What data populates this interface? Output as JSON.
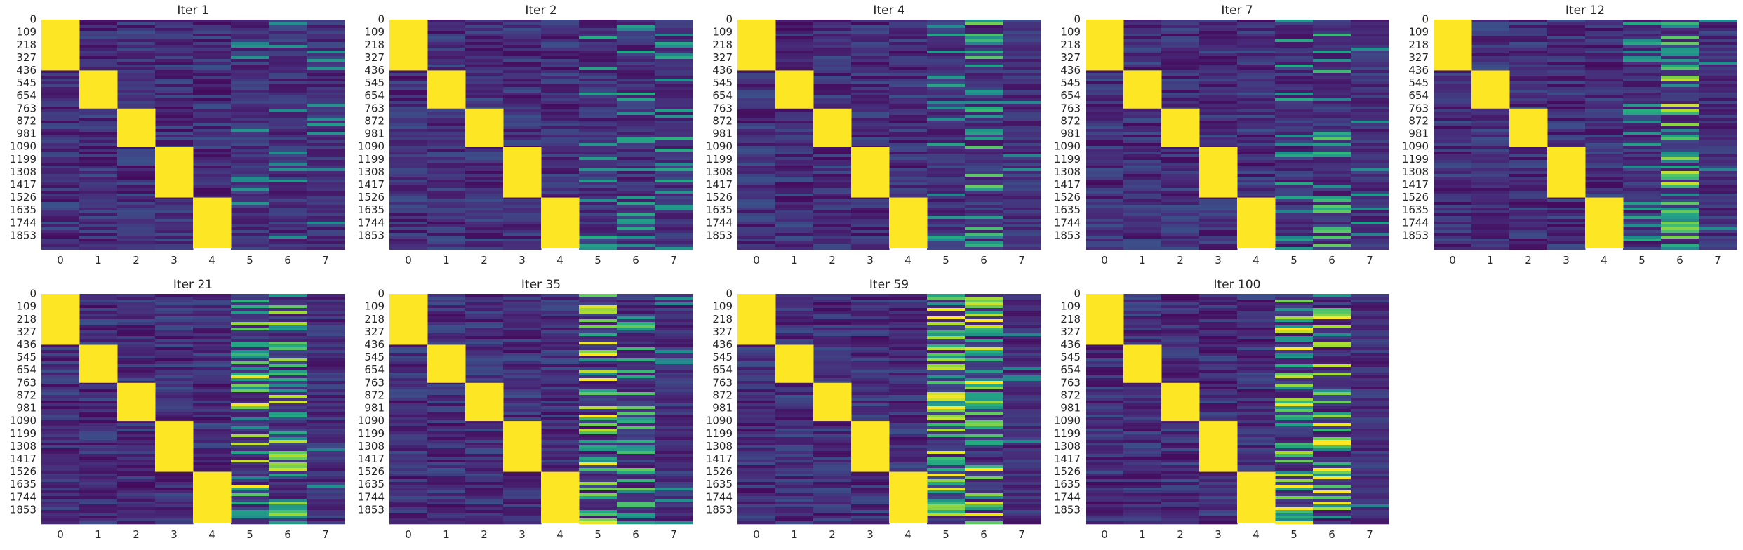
{
  "chart_data": [
    {
      "type": "heatmap",
      "title": "Iter 1",
      "x_categories": [
        "0",
        "1",
        "2",
        "3",
        "4",
        "5",
        "6",
        "7"
      ],
      "y_tick_labels": [
        "0",
        "109",
        "218",
        "327",
        "436",
        "545",
        "654",
        "763",
        "872",
        "981",
        "1090",
        "1199",
        "1308",
        "1417",
        "1526",
        "1635",
        "1744",
        "1853"
      ],
      "n_rows": 1962,
      "blocks": [
        [
          0,
          436
        ],
        [
          436,
          763
        ],
        [
          763,
          1090
        ],
        [
          1090,
          1526
        ],
        [
          1526,
          1962
        ]
      ],
      "stripe_intensity": [
        0.15,
        0.15,
        0.15
      ],
      "colormap": "viridis",
      "vmin": 0,
      "vmax": 1,
      "colorbar": false
    },
    {
      "type": "heatmap",
      "title": "Iter 2",
      "x_categories": [
        "0",
        "1",
        "2",
        "3",
        "4",
        "5",
        "6",
        "7"
      ],
      "y_tick_labels": [
        "0",
        "109",
        "218",
        "327",
        "436",
        "545",
        "654",
        "763",
        "872",
        "981",
        "1090",
        "1199",
        "1308",
        "1417",
        "1526",
        "1635",
        "1744",
        "1853"
      ],
      "n_rows": 1962,
      "blocks": [
        [
          0,
          436
        ],
        [
          436,
          763
        ],
        [
          763,
          1090
        ],
        [
          1090,
          1526
        ],
        [
          1526,
          1962
        ]
      ],
      "stripe_intensity": [
        0.3,
        0.35,
        0.3
      ],
      "colormap": "viridis",
      "vmin": 0,
      "vmax": 1,
      "colorbar": false
    },
    {
      "type": "heatmap",
      "title": "Iter 4",
      "x_categories": [
        "0",
        "1",
        "2",
        "3",
        "4",
        "5",
        "6",
        "7"
      ],
      "y_tick_labels": [
        "0",
        "109",
        "218",
        "327",
        "436",
        "545",
        "654",
        "763",
        "872",
        "981",
        "1090",
        "1199",
        "1308",
        "1417",
        "1526",
        "1635",
        "1744",
        "1853"
      ],
      "n_rows": 1962,
      "blocks": [
        [
          0,
          436
        ],
        [
          436,
          763
        ],
        [
          763,
          1090
        ],
        [
          1090,
          1526
        ],
        [
          1526,
          1962
        ]
      ],
      "stripe_intensity": [
        0.25,
        0.55,
        0.15
      ],
      "colormap": "viridis",
      "vmin": 0,
      "vmax": 1,
      "colorbar": false
    },
    {
      "type": "heatmap",
      "title": "Iter 7",
      "x_categories": [
        "0",
        "1",
        "2",
        "3",
        "4",
        "5",
        "6",
        "7"
      ],
      "y_tick_labels": [
        "0",
        "109",
        "218",
        "327",
        "436",
        "545",
        "654",
        "763",
        "872",
        "981",
        "1090",
        "1199",
        "1308",
        "1417",
        "1526",
        "1635",
        "1744",
        "1853"
      ],
      "n_rows": 1962,
      "blocks": [
        [
          0,
          436
        ],
        [
          436,
          763
        ],
        [
          763,
          1090
        ],
        [
          1090,
          1526
        ],
        [
          1526,
          1962
        ]
      ],
      "stripe_intensity": [
        0.3,
        0.5,
        0.2
      ],
      "colormap": "viridis",
      "vmin": 0,
      "vmax": 1,
      "colorbar": false
    },
    {
      "type": "heatmap",
      "title": "Iter 12",
      "x_categories": [
        "0",
        "1",
        "2",
        "3",
        "4",
        "5",
        "6",
        "7"
      ],
      "y_tick_labels": [
        "0",
        "109",
        "218",
        "327",
        "436",
        "545",
        "654",
        "763",
        "872",
        "981",
        "1090",
        "1199",
        "1308",
        "1417",
        "1526",
        "1635",
        "1744",
        "1853"
      ],
      "n_rows": 1962,
      "blocks": [
        [
          0,
          436
        ],
        [
          436,
          763
        ],
        [
          763,
          1090
        ],
        [
          1090,
          1526
        ],
        [
          1526,
          1962
        ]
      ],
      "stripe_intensity": [
        0.3,
        0.75,
        0.15
      ],
      "colormap": "viridis",
      "vmin": 0,
      "vmax": 1,
      "colorbar": false
    },
    {
      "type": "heatmap",
      "title": "Iter 21",
      "x_categories": [
        "0",
        "1",
        "2",
        "3",
        "4",
        "5",
        "6",
        "7"
      ],
      "y_tick_labels": [
        "0",
        "109",
        "218",
        "327",
        "436",
        "545",
        "654",
        "763",
        "872",
        "981",
        "1090",
        "1199",
        "1308",
        "1417",
        "1526",
        "1635",
        "1744",
        "1853"
      ],
      "n_rows": 1962,
      "blocks": [
        [
          0,
          436
        ],
        [
          436,
          763
        ],
        [
          763,
          1090
        ],
        [
          1090,
          1526
        ],
        [
          1526,
          1962
        ]
      ],
      "stripe_intensity": [
        0.85,
        0.75,
        0.1
      ],
      "colormap": "viridis",
      "vmin": 0,
      "vmax": 1,
      "colorbar": false
    },
    {
      "type": "heatmap",
      "title": "Iter 35",
      "x_categories": [
        "0",
        "1",
        "2",
        "3",
        "4",
        "5",
        "6",
        "7"
      ],
      "y_tick_labels": [
        "0",
        "109",
        "218",
        "327",
        "436",
        "545",
        "654",
        "763",
        "872",
        "981",
        "1090",
        "1199",
        "1308",
        "1417",
        "1526",
        "1635",
        "1744",
        "1853"
      ],
      "n_rows": 1962,
      "blocks": [
        [
          0,
          436
        ],
        [
          436,
          763
        ],
        [
          763,
          1090
        ],
        [
          1090,
          1526
        ],
        [
          1526,
          1962
        ]
      ],
      "stripe_intensity": [
        0.9,
        0.5,
        0.1
      ],
      "colormap": "viridis",
      "vmin": 0,
      "vmax": 1,
      "colorbar": false
    },
    {
      "type": "heatmap",
      "title": "Iter 59",
      "x_categories": [
        "0",
        "1",
        "2",
        "3",
        "4",
        "5",
        "6",
        "7"
      ],
      "y_tick_labels": [
        "0",
        "109",
        "218",
        "327",
        "436",
        "545",
        "654",
        "763",
        "872",
        "981",
        "1090",
        "1199",
        "1308",
        "1417",
        "1526",
        "1635",
        "1744",
        "1853"
      ],
      "n_rows": 1962,
      "blocks": [
        [
          0,
          436
        ],
        [
          436,
          763
        ],
        [
          763,
          1090
        ],
        [
          1090,
          1526
        ],
        [
          1526,
          1962
        ]
      ],
      "stripe_intensity": [
        0.9,
        0.9,
        0.05
      ],
      "colormap": "viridis",
      "vmin": 0,
      "vmax": 1,
      "colorbar": false
    },
    {
      "type": "heatmap",
      "title": "Iter 100",
      "x_categories": [
        "0",
        "1",
        "2",
        "3",
        "4",
        "5",
        "6",
        "7"
      ],
      "y_tick_labels": [
        "0",
        "109",
        "218",
        "327",
        "436",
        "545",
        "654",
        "763",
        "872",
        "981",
        "1090",
        "1199",
        "1308",
        "1417",
        "1526",
        "1635",
        "1744",
        "1853"
      ],
      "n_rows": 1962,
      "blocks": [
        [
          0,
          436
        ],
        [
          436,
          763
        ],
        [
          763,
          1090
        ],
        [
          1090,
          1526
        ],
        [
          1526,
          1962
        ]
      ],
      "stripe_intensity": [
        0.95,
        0.95,
        0.03
      ],
      "colormap": "viridis",
      "vmin": 0,
      "vmax": 1,
      "colorbar": false
    }
  ]
}
